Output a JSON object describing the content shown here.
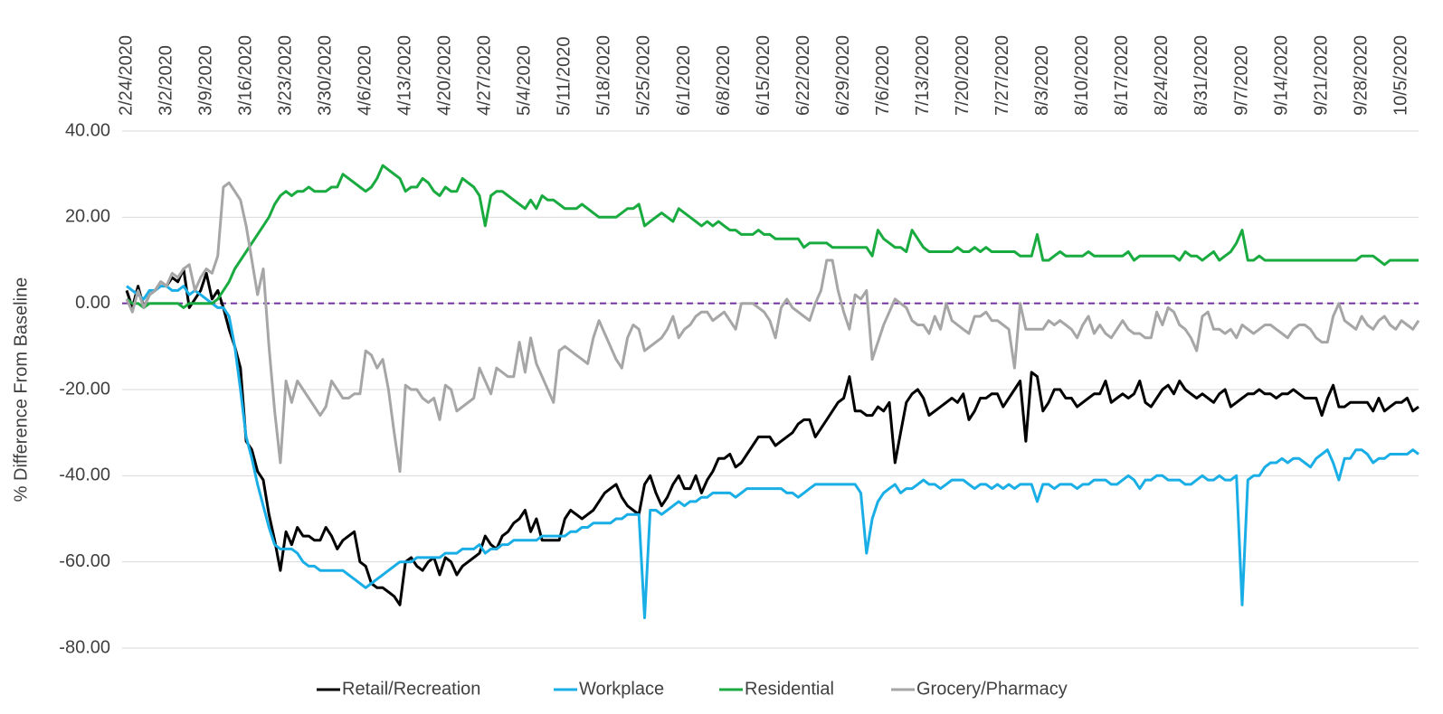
{
  "chart_data": {
    "type": "line",
    "y_label": "% Difference From Baseline",
    "ylim": [
      -80,
      40
    ],
    "yticks": [
      {
        "value": 40,
        "label": "40.00"
      },
      {
        "value": 20,
        "label": "20.00"
      },
      {
        "value": 0,
        "label": "0.00"
      },
      {
        "value": -20,
        "label": "-20.00"
      },
      {
        "value": -40,
        "label": "-40.00"
      },
      {
        "value": -60,
        "label": "-60.00"
      },
      {
        "value": -80,
        "label": "-80.00"
      }
    ],
    "grid": true,
    "legend": "bottom",
    "hline": 0,
    "hline_color": "#7030a0",
    "categories": [
      "2/24/2020",
      null,
      null,
      null,
      null,
      null,
      null,
      "3/2/2020",
      null,
      null,
      null,
      null,
      null,
      null,
      "3/9/2020",
      null,
      null,
      null,
      null,
      null,
      null,
      "3/16/2020",
      null,
      null,
      null,
      null,
      null,
      null,
      "3/23/2020",
      null,
      null,
      null,
      null,
      null,
      null,
      "3/30/2020",
      null,
      null,
      null,
      null,
      null,
      null,
      "4/6/2020",
      null,
      null,
      null,
      null,
      null,
      null,
      "4/13/2020",
      null,
      null,
      null,
      null,
      null,
      null,
      "4/20/2020",
      null,
      null,
      null,
      null,
      null,
      null,
      "4/27/2020",
      null,
      null,
      null,
      null,
      null,
      null,
      "5/4/2020",
      null,
      null,
      null,
      null,
      null,
      null,
      "5/11/2020",
      null,
      null,
      null,
      null,
      null,
      null,
      "5/18/2020",
      null,
      null,
      null,
      null,
      null,
      null,
      "5/25/2020",
      null,
      null,
      null,
      null,
      null,
      null,
      "6/1/2020",
      null,
      null,
      null,
      null,
      null,
      null,
      "6/8/2020",
      null,
      null,
      null,
      null,
      null,
      null,
      "6/15/2020",
      null,
      null,
      null,
      null,
      null,
      null,
      "6/22/2020",
      null,
      null,
      null,
      null,
      null,
      null,
      "6/29/2020",
      null,
      null,
      null,
      null,
      null,
      null,
      "7/6/2020",
      null,
      null,
      null,
      null,
      null,
      null,
      "7/13/2020",
      null,
      null,
      null,
      null,
      null,
      null,
      "7/20/2020",
      null,
      null,
      null,
      null,
      null,
      null,
      "7/27/2020",
      null,
      null,
      null,
      null,
      null,
      null,
      "8/3/2020",
      null,
      null,
      null,
      null,
      null,
      null,
      "8/10/2020",
      null,
      null,
      null,
      null,
      null,
      null,
      "8/17/2020",
      null,
      null,
      null,
      null,
      null,
      null,
      "8/24/2020",
      null,
      null,
      null,
      null,
      null,
      null,
      "8/31/2020",
      null,
      null,
      null,
      null,
      null,
      null,
      "9/7/2020",
      null,
      null,
      null,
      null,
      null,
      null,
      "9/14/2020",
      null,
      null,
      null,
      null,
      null,
      null,
      "9/21/2020",
      null,
      null,
      null,
      null,
      null,
      null,
      "9/28/2020",
      null,
      null,
      null,
      null,
      null,
      null,
      "10/5/2020",
      null,
      null,
      null
    ],
    "series": [
      {
        "name": "Retail/Recreation",
        "color": "#000000",
        "values": [
          3,
          -1,
          4,
          -1,
          2,
          3,
          5,
          4,
          6,
          5,
          8,
          -1,
          1,
          3,
          7,
          1,
          3,
          -1,
          -6,
          -10,
          -15,
          -32,
          -34,
          -39,
          -41,
          -49,
          -55,
          -62,
          -53,
          -56,
          -52,
          -54,
          -54,
          -55,
          -55,
          -52,
          -54,
          -57,
          -55,
          -54,
          -53,
          -60,
          -61,
          -65,
          -66,
          -66,
          -67,
          -68,
          -70,
          -60,
          -59,
          -61,
          -62,
          -60,
          -59,
          -63,
          -59,
          -60,
          -63,
          -61,
          -60,
          -59,
          -58,
          -54,
          -56,
          -57,
          -54,
          -53,
          -51,
          -50,
          -48,
          -53,
          -50,
          -55,
          -55,
          -55,
          -55,
          -50,
          -48,
          -49,
          -50,
          -49,
          -48,
          -46,
          -44,
          -43,
          -42,
          -45,
          -47,
          -48,
          -49,
          -42,
          -40,
          -44,
          -47,
          -45,
          -42,
          -40,
          -43,
          -43,
          -40,
          -44,
          -41,
          -39,
          -36,
          -36,
          -35,
          -38,
          -37,
          -35,
          -33,
          -31,
          -31,
          -31,
          -33,
          -32,
          -31,
          -30,
          -28,
          -27,
          -27,
          -31,
          -29,
          -27,
          -25,
          -23,
          -22,
          -17,
          -25,
          -25,
          -26,
          -26,
          -24,
          -25,
          -23,
          -37,
          -30,
          -23,
          -21,
          -20,
          -22,
          -26,
          -25,
          -24,
          -23,
          -22,
          -23,
          -21,
          -27,
          -25,
          -22,
          -22,
          -21,
          -21,
          -24,
          -22,
          -20,
          -18,
          -32,
          -16,
          -17,
          -25,
          -23,
          -20,
          -20,
          -22,
          -22,
          -24,
          -23,
          -22,
          -21,
          -21,
          -18,
          -23,
          -22,
          -21,
          -22,
          -21,
          -18,
          -23,
          -24,
          -22,
          -20,
          -19,
          -21,
          -18,
          -20,
          -21,
          -22,
          -21,
          -22,
          -23,
          -21,
          -20,
          -24,
          -23,
          -22,
          -21,
          -21,
          -20,
          -21,
          -21,
          -22,
          -21,
          -21,
          -20,
          -21,
          -22,
          -22,
          -22,
          -26,
          -22,
          -19,
          -24,
          -24,
          -23,
          -23,
          -23,
          -23,
          -25,
          -22,
          -25,
          -24,
          -23,
          -23,
          -22,
          -25,
          -24
        ]
      },
      {
        "name": "Workplace",
        "color": "#1aaee6",
        "values": [
          4,
          3,
          2,
          1,
          3,
          3,
          4,
          4,
          3,
          3,
          4,
          2,
          3,
          2,
          1,
          0,
          -1,
          -1,
          -3,
          -10,
          -20,
          -31,
          -36,
          -42,
          -47,
          -52,
          -56,
          -57,
          -57,
          -57,
          -58,
          -60,
          -61,
          -61,
          -62,
          -62,
          -62,
          -62,
          -62,
          -63,
          -64,
          -65,
          -66,
          -65,
          -64,
          -63,
          -62,
          -61,
          -60,
          -60,
          -60,
          -59,
          -59,
          -59,
          -59,
          -59,
          -58,
          -58,
          -58,
          -57,
          -57,
          -57,
          -56,
          -58,
          -57,
          -57,
          -56,
          -56,
          -55,
          -55,
          -55,
          -55,
          -55,
          -54,
          -54,
          -54,
          -54,
          -54,
          -53,
          -53,
          -52,
          -52,
          -51,
          -51,
          -51,
          -51,
          -50,
          -50,
          -49,
          -49,
          -49,
          -73,
          -48,
          -48,
          -49,
          -48,
          -47,
          -46,
          -47,
          -46,
          -46,
          -45,
          -45,
          -44,
          -44,
          -44,
          -44,
          -45,
          -44,
          -43,
          -43,
          -43,
          -43,
          -43,
          -43,
          -43,
          -44,
          -44,
          -45,
          -44,
          -43,
          -42,
          -42,
          -42,
          -42,
          -42,
          -42,
          -42,
          -42,
          -44,
          -58,
          -50,
          -46,
          -44,
          -43,
          -42,
          -44,
          -43,
          -43,
          -42,
          -41,
          -42,
          -42,
          -43,
          -42,
          -41,
          -41,
          -41,
          -42,
          -43,
          -42,
          -42,
          -43,
          -42,
          -43,
          -42,
          -43,
          -42,
          -42,
          -42,
          -46,
          -42,
          -42,
          -43,
          -42,
          -42,
          -42,
          -43,
          -42,
          -42,
          -41,
          -41,
          -41,
          -42,
          -42,
          -41,
          -40,
          -41,
          -43,
          -41,
          -41,
          -40,
          -40,
          -41,
          -41,
          -41,
          -42,
          -42,
          -41,
          -40,
          -41,
          -41,
          -40,
          -41,
          -41,
          -40,
          -70,
          -41,
          -40,
          -40,
          -38,
          -37,
          -37,
          -36,
          -37,
          -36,
          -36,
          -37,
          -38,
          -36,
          -35,
          -34,
          -37,
          -41,
          -36,
          -36,
          -34,
          -34,
          -35,
          -37,
          -36,
          -36,
          -35,
          -35,
          -35,
          -35,
          -34,
          -35
        ]
      },
      {
        "name": "Residential",
        "color": "#1aab40",
        "values": [
          1,
          0,
          0,
          -1,
          0,
          0,
          0,
          0,
          0,
          0,
          -1,
          0,
          0,
          0,
          0,
          0,
          1,
          3,
          5,
          8,
          10,
          12,
          14,
          16,
          18,
          20,
          23,
          25,
          26,
          25,
          26,
          26,
          27,
          26,
          26,
          26,
          27,
          27,
          30,
          29,
          28,
          27,
          26,
          27,
          29,
          32,
          31,
          30,
          29,
          26,
          27,
          27,
          29,
          28,
          26,
          25,
          27,
          26,
          26,
          29,
          28,
          27,
          25,
          18,
          25,
          26,
          26,
          25,
          24,
          23,
          22,
          24,
          22,
          25,
          24,
          24,
          23,
          22,
          22,
          22,
          23,
          22,
          21,
          20,
          20,
          20,
          20,
          21,
          22,
          22,
          23,
          18,
          19,
          20,
          21,
          20,
          19,
          22,
          21,
          20,
          19,
          18,
          19,
          18,
          19,
          18,
          17,
          17,
          16,
          16,
          16,
          17,
          16,
          16,
          15,
          15,
          15,
          15,
          15,
          13,
          14,
          14,
          14,
          14,
          13,
          13,
          13,
          13,
          13,
          13,
          13,
          11,
          17,
          15,
          14,
          13,
          13,
          12,
          17,
          15,
          13,
          12,
          12,
          12,
          12,
          12,
          13,
          12,
          12,
          13,
          12,
          13,
          12,
          12,
          12,
          12,
          12,
          11,
          11,
          11,
          16,
          10,
          10,
          11,
          12,
          11,
          11,
          11,
          11,
          12,
          11,
          11,
          11,
          11,
          11,
          11,
          12,
          10,
          11,
          11,
          11,
          11,
          11,
          11,
          11,
          10,
          12,
          11,
          11,
          10,
          11,
          12,
          10,
          11,
          12,
          14,
          17,
          10,
          10,
          11,
          10,
          10,
          10,
          10,
          10,
          10,
          10,
          10,
          10,
          10,
          10,
          10,
          10,
          10,
          10,
          10,
          10,
          11,
          11,
          11,
          10,
          9,
          10,
          10,
          10,
          10,
          10,
          10
        ]
      },
      {
        "name": "Grocery/Pharmacy",
        "color": "#a6a6a6",
        "values": [
          1,
          -2,
          3,
          -1,
          2,
          3,
          5,
          4,
          7,
          6,
          8,
          9,
          3,
          6,
          8,
          7,
          11,
          27,
          28,
          26,
          24,
          18,
          10,
          2,
          8,
          -10,
          -25,
          -37,
          -18,
          -23,
          -18,
          -20,
          -22,
          -24,
          -26,
          -24,
          -18,
          -20,
          -22,
          -22,
          -21,
          -21,
          -11,
          -12,
          -15,
          -13,
          -20,
          -30,
          -39,
          -19,
          -20,
          -20,
          -22,
          -23,
          -22,
          -27,
          -19,
          -20,
          -25,
          -24,
          -23,
          -22,
          -15,
          -18,
          -21,
          -15,
          -16,
          -17,
          -17,
          -9,
          -16,
          -8,
          -14,
          -17,
          -20,
          -23,
          -11,
          -10,
          -11,
          -12,
          -13,
          -14,
          -8,
          -4,
          -7,
          -10,
          -13,
          -15,
          -8,
          -5,
          -6,
          -11,
          -10,
          -9,
          -8,
          -6,
          -3,
          -8,
          -6,
          -5,
          -3,
          -2,
          -2,
          -4,
          -3,
          -2,
          -4,
          -6,
          0,
          0,
          0,
          -1,
          -2,
          -4,
          -8,
          -1,
          1,
          -1,
          -2,
          -3,
          -4,
          0,
          3,
          10,
          10,
          3,
          -2,
          -6,
          2,
          1,
          3,
          -13,
          -9,
          -5,
          -2,
          1,
          0,
          -1,
          -4,
          -5,
          -5,
          -7,
          -3,
          -6,
          0,
          -4,
          -5,
          -6,
          -7,
          -3,
          -3,
          -2,
          -4,
          -4,
          -5,
          -6,
          -15,
          0,
          -6,
          -6,
          -6,
          -6,
          -4,
          -5,
          -4,
          -5,
          -6,
          -8,
          -5,
          -3,
          -7,
          -5,
          -7,
          -8,
          -6,
          -4,
          -6,
          -7,
          -7,
          -8,
          -8,
          -2,
          -5,
          -1,
          -2,
          -5,
          -6,
          -8,
          -11,
          -3,
          -2,
          -6,
          -6,
          -7,
          -6,
          -8,
          -5,
          -6,
          -7,
          -6,
          -5,
          -5,
          -6,
          -7,
          -8,
          -6,
          -5,
          -5,
          -6,
          -8,
          -9,
          -9,
          -3,
          0,
          -4,
          -5,
          -6,
          -3,
          -5,
          -6,
          -4,
          -3,
          -5,
          -6,
          -4,
          -5,
          -6,
          -4
        ]
      }
    ]
  }
}
